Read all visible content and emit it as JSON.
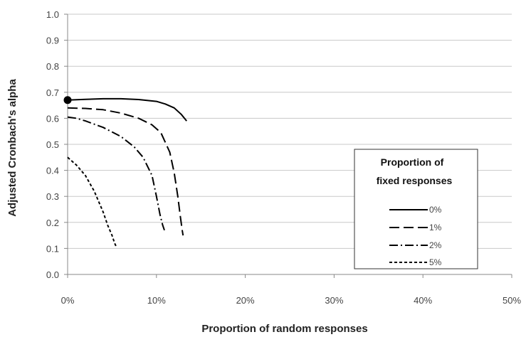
{
  "chart_data": {
    "type": "line",
    "title": "",
    "xlabel": "Proportion of random responses",
    "ylabel": "Adjusted Cronbach's  alpha",
    "xlim": [
      0,
      50
    ],
    "ylim": [
      0,
      1.0
    ],
    "x_ticks": [
      "0%",
      "10%",
      "20%",
      "30%",
      "40%",
      "50%"
    ],
    "x_tick_values": [
      0,
      10,
      20,
      30,
      40,
      50
    ],
    "y_ticks": [
      "0.0",
      "0.1",
      "0.2",
      "0.3",
      "0.4",
      "0.5",
      "0.6",
      "0.7",
      "0.8",
      "0.9",
      "1.0"
    ],
    "y_tick_values": [
      0,
      0.1,
      0.2,
      0.3,
      0.4,
      0.5,
      0.6,
      0.7,
      0.8,
      0.9,
      1.0
    ],
    "grid": "horizontal",
    "legend": {
      "title_line1": "Proportion of",
      "title_line2": "fixed responses",
      "placement": "center-right"
    },
    "marker": {
      "x": 0,
      "y": 0.67
    },
    "series": [
      {
        "name": "0%",
        "style": "solid",
        "x": [
          0,
          2,
          4,
          6,
          8,
          10,
          11,
          12,
          12.8,
          13.4
        ],
        "y": [
          0.67,
          0.673,
          0.675,
          0.675,
          0.672,
          0.665,
          0.655,
          0.64,
          0.615,
          0.59
        ]
      },
      {
        "name": "1%",
        "style": "dash",
        "x": [
          0,
          2,
          4,
          6,
          8,
          9.5,
          10.5,
          11.5,
          12,
          12.4,
          12.7,
          12.9,
          13
        ],
        "y": [
          0.64,
          0.638,
          0.633,
          0.62,
          0.6,
          0.575,
          0.545,
          0.47,
          0.39,
          0.3,
          0.22,
          0.17,
          0.15
        ]
      },
      {
        "name": "2%",
        "style": "dashdot",
        "x": [
          0,
          1,
          2,
          4,
          6,
          7.5,
          8.5,
          9.5,
          10,
          10.4,
          10.7,
          10.9
        ],
        "y": [
          0.605,
          0.6,
          0.59,
          0.565,
          0.53,
          0.49,
          0.45,
          0.38,
          0.3,
          0.23,
          0.19,
          0.17
        ]
      },
      {
        "name": "5%",
        "style": "dotted",
        "x": [
          0,
          1,
          2,
          3,
          4,
          4.5,
          5,
          5.3,
          5.5
        ],
        "y": [
          0.45,
          0.42,
          0.38,
          0.32,
          0.24,
          0.19,
          0.15,
          0.12,
          0.105
        ]
      }
    ]
  }
}
